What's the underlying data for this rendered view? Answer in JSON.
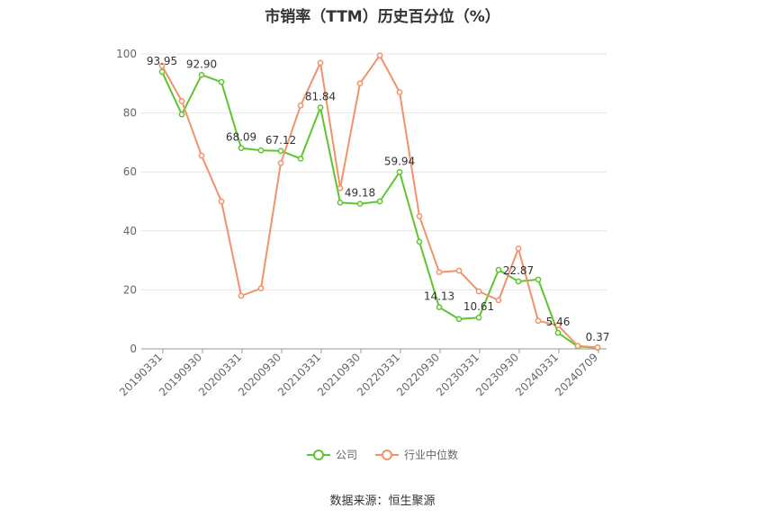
{
  "title": "市销率（TTM）历史百分位（%）",
  "source": "数据来源：恒生聚源",
  "colors": {
    "company": "#5ec42f",
    "industry": "#f2926a",
    "grid": "#e6e6e6",
    "axis": "#999999",
    "text": "#666666"
  },
  "chart_data": {
    "type": "line",
    "title": "市销率（TTM）历史百分位（%）",
    "ylim": [
      0,
      100
    ],
    "yticks": [
      0,
      20,
      40,
      60,
      80,
      100
    ],
    "grid": true,
    "legend_position": "bottom",
    "x_tick_labels": [
      "20190331",
      "20190930",
      "20200331",
      "20200930",
      "20210331",
      "20210930",
      "20220331",
      "20220930",
      "20230331",
      "20230930",
      "20240331",
      "20240709"
    ],
    "series": [
      {
        "name": "公司",
        "color": "#5ec42f",
        "values": [
          93.95,
          79.5,
          92.9,
          90.5,
          68.09,
          67.3,
          67.12,
          64.5,
          81.84,
          49.6,
          49.18,
          50.0,
          59.94,
          36.3,
          14.13,
          10.1,
          10.61,
          26.8,
          22.87,
          23.5,
          5.46,
          0.8,
          0.37
        ],
        "labels": {
          "0": "93.95",
          "2": "92.90",
          "4": "68.09",
          "6": "67.12",
          "8": "81.84",
          "10": "49.18",
          "12": "59.94",
          "14": "14.13",
          "16": "10.61",
          "18": "22.87",
          "20": "5.46",
          "22": "0.37"
        }
      },
      {
        "name": "行业中位数",
        "color": "#f2926a",
        "values": [
          96.0,
          84.0,
          65.5,
          50.0,
          18.0,
          20.5,
          63.0,
          82.5,
          97.0,
          54.5,
          90.0,
          99.5,
          87.0,
          45.0,
          26.0,
          26.5,
          19.5,
          16.5,
          34.0,
          9.5,
          8.0,
          1.0,
          0.5
        ]
      }
    ]
  }
}
